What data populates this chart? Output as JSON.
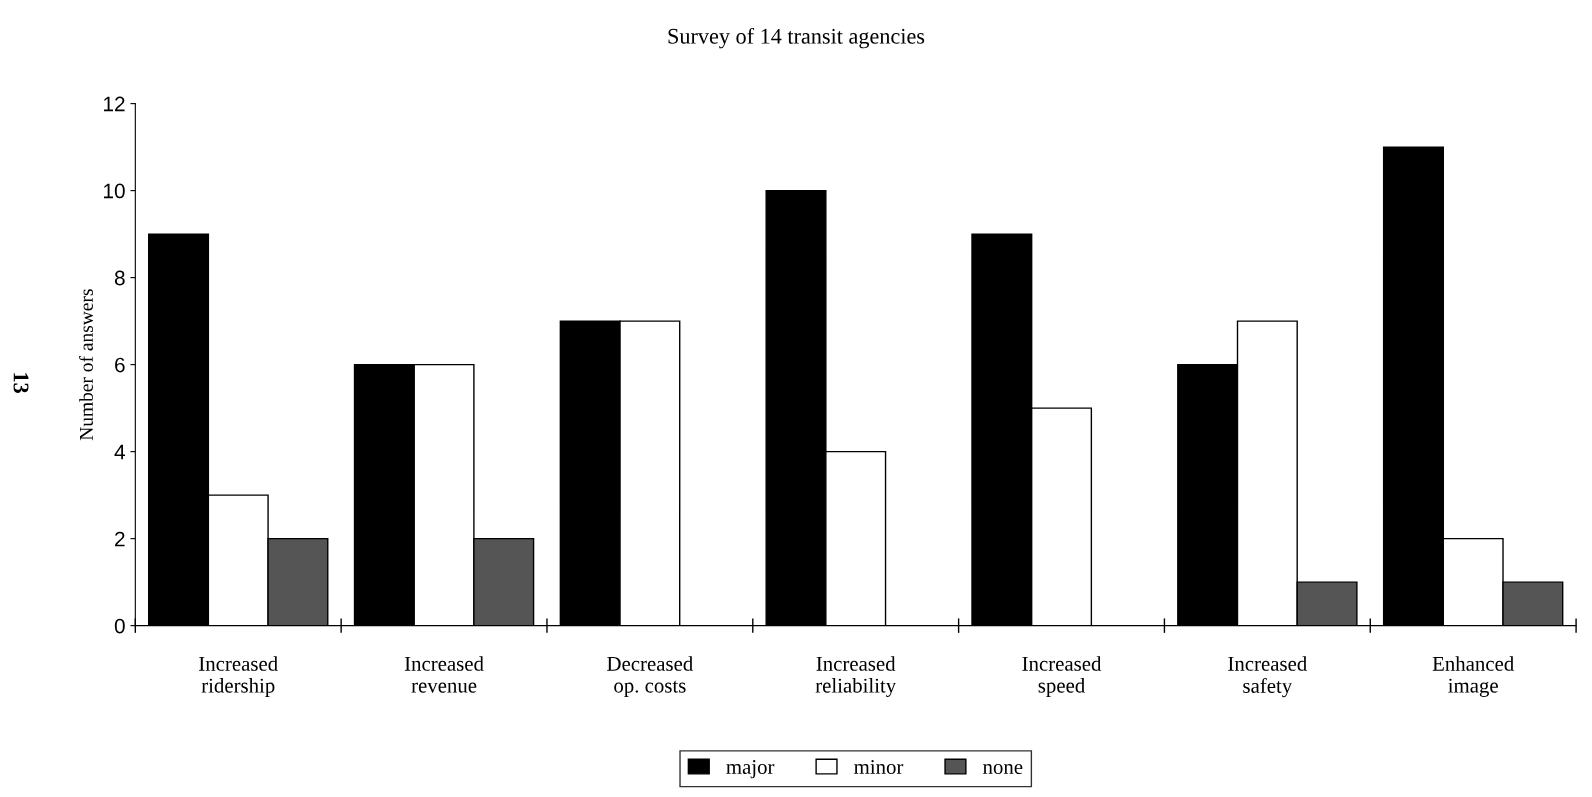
{
  "chart_data": {
    "type": "bar",
    "title": "Survey of 14 transit agencies",
    "ylabel": "Number of answers",
    "categories": [
      "Increased\nridership",
      "Increased\nrevenue",
      "Decreased\nop. costs",
      "Increased\nreliability",
      "Increased\nspeed",
      "Increased\nsafety",
      "Enhanced\nimage"
    ],
    "series": [
      {
        "name": "major",
        "color": "#000000",
        "values": [
          9,
          6,
          7,
          10,
          9,
          6,
          11
        ]
      },
      {
        "name": "minor",
        "color": "#ffffff",
        "values": [
          3,
          6,
          7,
          4,
          5,
          7,
          2
        ]
      },
      {
        "name": "none",
        "color": "#555555",
        "values": [
          2,
          2,
          0,
          0,
          0,
          1,
          1
        ]
      }
    ],
    "ylim": [
      0,
      12
    ],
    "yticks": [
      0,
      2,
      4,
      6,
      8,
      10,
      12
    ],
    "grid": false,
    "legend": "bottom",
    "annotations": [
      "13"
    ]
  }
}
